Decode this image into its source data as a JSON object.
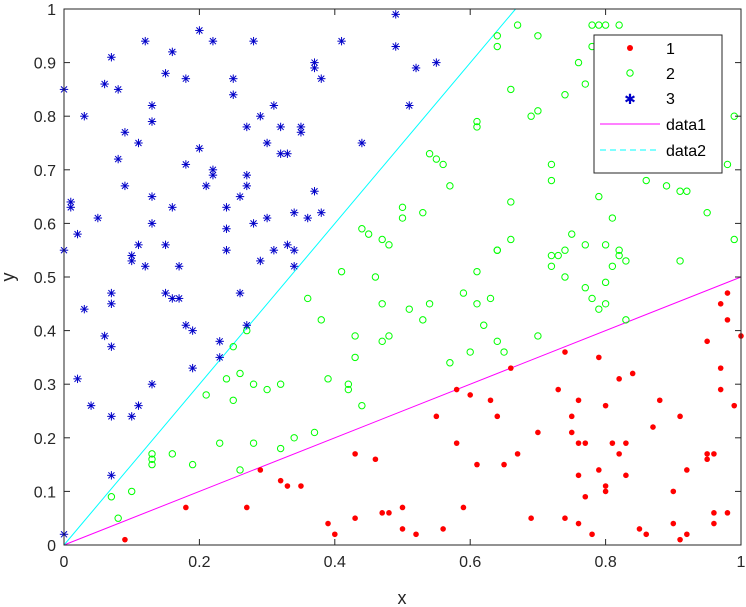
{
  "chart_data": {
    "type": "scatter",
    "xlabel": "x",
    "ylabel": "y",
    "xlim": [
      0,
      1
    ],
    "ylim": [
      0,
      1
    ],
    "xticks": [
      "0",
      "0.2",
      "0.4",
      "0.6",
      "0.8",
      "1"
    ],
    "yticks": [
      "0",
      "0.1",
      "0.2",
      "0.3",
      "0.4",
      "0.5",
      "0.6",
      "0.7",
      "0.8",
      "0.9",
      "1"
    ],
    "grid": false,
    "legend_position": "top-right",
    "series": [
      {
        "name": "1",
        "marker": "filled-circle",
        "color": "#ff0000",
        "points": [
          [
            0.09,
            0.01
          ],
          [
            0.18,
            0.07
          ],
          [
            0.27,
            0.07
          ],
          [
            0.29,
            0.14
          ],
          [
            0.32,
            0.12
          ],
          [
            0.33,
            0.11
          ],
          [
            0.35,
            0.11
          ],
          [
            0.39,
            0.04
          ],
          [
            0.4,
            0.02
          ],
          [
            0.43,
            0.17
          ],
          [
            0.43,
            0.05
          ],
          [
            0.46,
            0.16
          ],
          [
            0.47,
            0.06
          ],
          [
            0.48,
            0.06
          ],
          [
            0.5,
            0.07
          ],
          [
            0.5,
            0.03
          ],
          [
            0.52,
            0.02
          ],
          [
            0.55,
            0.24
          ],
          [
            0.56,
            0.03
          ],
          [
            0.58,
            0.29
          ],
          [
            0.58,
            0.19
          ],
          [
            0.59,
            0.07
          ],
          [
            0.6,
            0.28
          ],
          [
            0.61,
            0.15
          ],
          [
            0.63,
            0.27
          ],
          [
            0.64,
            0.24
          ],
          [
            0.65,
            0.15
          ],
          [
            0.66,
            0.33
          ],
          [
            0.67,
            0.17
          ],
          [
            0.69,
            0.05
          ],
          [
            0.7,
            0.21
          ],
          [
            0.73,
            0.29
          ],
          [
            0.74,
            0.36
          ],
          [
            0.74,
            0.05
          ],
          [
            0.75,
            0.24
          ],
          [
            0.75,
            0.21
          ],
          [
            0.76,
            0.27
          ],
          [
            0.76,
            0.19
          ],
          [
            0.76,
            0.13
          ],
          [
            0.76,
            0.04
          ],
          [
            0.77,
            0.19
          ],
          [
            0.77,
            0.09
          ],
          [
            0.78,
            0.02
          ],
          [
            0.79,
            0.35
          ],
          [
            0.79,
            0.14
          ],
          [
            0.8,
            0.26
          ],
          [
            0.8,
            0.11
          ],
          [
            0.8,
            0.1
          ],
          [
            0.81,
            0.19
          ],
          [
            0.82,
            0.31
          ],
          [
            0.82,
            0.17
          ],
          [
            0.83,
            0.19
          ],
          [
            0.83,
            0.13
          ],
          [
            0.84,
            0.32
          ],
          [
            0.85,
            0.03
          ],
          [
            0.86,
            0.02
          ],
          [
            0.87,
            0.22
          ],
          [
            0.88,
            0.27
          ],
          [
            0.9,
            0.1
          ],
          [
            0.9,
            0.04
          ],
          [
            0.91,
            0.24
          ],
          [
            0.91,
            0.01
          ],
          [
            0.92,
            0.02
          ],
          [
            0.92,
            0.14
          ],
          [
            0.95,
            0.38
          ],
          [
            0.95,
            0.17
          ],
          [
            0.96,
            0.06
          ],
          [
            0.96,
            0.17
          ],
          [
            0.96,
            0.04
          ],
          [
            0.97,
            0.33
          ],
          [
            0.97,
            0.29
          ],
          [
            0.97,
            0.45
          ],
          [
            0.98,
            0.42
          ],
          [
            0.98,
            0.06
          ],
          [
            0.98,
            0.47
          ],
          [
            0.99,
            0.26
          ],
          [
            1.0,
            0.39
          ],
          [
            0.95,
            0.16
          ]
        ]
      },
      {
        "name": "2",
        "marker": "open-circle",
        "color": "#00ff00",
        "points": [
          [
            0.07,
            0.09
          ],
          [
            0.08,
            0.05
          ],
          [
            0.1,
            0.1
          ],
          [
            0.13,
            0.16
          ],
          [
            0.13,
            0.15
          ],
          [
            0.13,
            0.17
          ],
          [
            0.16,
            0.17
          ],
          [
            0.19,
            0.15
          ],
          [
            0.21,
            0.28
          ],
          [
            0.23,
            0.19
          ],
          [
            0.24,
            0.31
          ],
          [
            0.25,
            0.37
          ],
          [
            0.25,
            0.27
          ],
          [
            0.26,
            0.32
          ],
          [
            0.26,
            0.14
          ],
          [
            0.27,
            0.4
          ],
          [
            0.28,
            0.19
          ],
          [
            0.28,
            0.3
          ],
          [
            0.3,
            0.29
          ],
          [
            0.32,
            0.3
          ],
          [
            0.32,
            0.18
          ],
          [
            0.34,
            0.2
          ],
          [
            0.36,
            0.46
          ],
          [
            0.37,
            0.21
          ],
          [
            0.38,
            0.42
          ],
          [
            0.39,
            0.31
          ],
          [
            0.41,
            0.51
          ],
          [
            0.42,
            0.3
          ],
          [
            0.42,
            0.29
          ],
          [
            0.43,
            0.39
          ],
          [
            0.43,
            0.35
          ],
          [
            0.44,
            0.26
          ],
          [
            0.44,
            0.59
          ],
          [
            0.45,
            0.58
          ],
          [
            0.46,
            0.5
          ],
          [
            0.47,
            0.38
          ],
          [
            0.47,
            0.45
          ],
          [
            0.47,
            0.57
          ],
          [
            0.48,
            0.56
          ],
          [
            0.48,
            0.39
          ],
          [
            0.5,
            0.63
          ],
          [
            0.5,
            0.61
          ],
          [
            0.51,
            0.44
          ],
          [
            0.53,
            0.62
          ],
          [
            0.53,
            0.42
          ],
          [
            0.54,
            0.45
          ],
          [
            0.54,
            0.73
          ],
          [
            0.55,
            0.72
          ],
          [
            0.56,
            0.71
          ],
          [
            0.57,
            0.34
          ],
          [
            0.57,
            0.67
          ],
          [
            0.59,
            0.47
          ],
          [
            0.6,
            0.36
          ],
          [
            0.61,
            0.51
          ],
          [
            0.61,
            0.45
          ],
          [
            0.61,
            0.79
          ],
          [
            0.61,
            0.78
          ],
          [
            0.62,
            0.41
          ],
          [
            0.63,
            0.46
          ],
          [
            0.64,
            0.38
          ],
          [
            0.64,
            0.55
          ],
          [
            0.65,
            0.36
          ],
          [
            0.64,
            0.93
          ],
          [
            0.64,
            0.95
          ],
          [
            0.64,
            0.55
          ],
          [
            0.66,
            0.64
          ],
          [
            0.66,
            0.57
          ],
          [
            0.66,
            0.85
          ],
          [
            0.67,
            0.97
          ],
          [
            0.69,
            0.8
          ],
          [
            0.7,
            0.95
          ],
          [
            0.7,
            0.81
          ],
          [
            0.7,
            0.39
          ],
          [
            0.72,
            0.68
          ],
          [
            0.72,
            0.71
          ],
          [
            0.72,
            0.54
          ],
          [
            0.72,
            0.52
          ],
          [
            0.73,
            0.54
          ],
          [
            0.74,
            0.55
          ],
          [
            0.74,
            0.84
          ],
          [
            0.74,
            0.5
          ],
          [
            0.75,
            0.58
          ],
          [
            0.76,
            0.9
          ],
          [
            0.77,
            0.48
          ],
          [
            0.77,
            0.56
          ],
          [
            0.78,
            0.97
          ],
          [
            0.78,
            0.46
          ],
          [
            0.79,
            0.44
          ],
          [
            0.79,
            0.97
          ],
          [
            0.79,
            0.65
          ],
          [
            0.8,
            0.97
          ],
          [
            0.8,
            0.49
          ],
          [
            0.8,
            0.45
          ],
          [
            0.8,
            0.56
          ],
          [
            0.81,
            0.61
          ],
          [
            0.81,
            0.52
          ],
          [
            0.82,
            0.97
          ],
          [
            0.82,
            0.54
          ],
          [
            0.82,
            0.55
          ],
          [
            0.83,
            0.42
          ],
          [
            0.83,
            0.53
          ],
          [
            0.84,
            0.91
          ],
          [
            0.86,
            0.68
          ],
          [
            0.89,
            0.67
          ],
          [
            0.91,
            0.66
          ],
          [
            0.91,
            0.53
          ],
          [
            0.92,
            0.66
          ],
          [
            0.95,
            0.62
          ],
          [
            0.98,
            0.71
          ],
          [
            0.99,
            0.8
          ],
          [
            0.99,
            0.57
          ],
          [
            0.77,
            0.86
          ],
          [
            0.78,
            0.93
          ],
          [
            0.83,
            0.93
          ]
        ]
      },
      {
        "name": "3",
        "marker": "asterisk",
        "color": "#0000c8",
        "points": [
          [
            0.0,
            0.85
          ],
          [
            0.0,
            0.55
          ],
          [
            0.0,
            0.02
          ],
          [
            0.01,
            0.63
          ],
          [
            0.01,
            0.64
          ],
          [
            0.02,
            0.58
          ],
          [
            0.02,
            0.31
          ],
          [
            0.03,
            0.8
          ],
          [
            0.03,
            0.44
          ],
          [
            0.04,
            0.26
          ],
          [
            0.05,
            0.61
          ],
          [
            0.06,
            0.86
          ],
          [
            0.06,
            0.39
          ],
          [
            0.07,
            0.91
          ],
          [
            0.07,
            0.47
          ],
          [
            0.07,
            0.45
          ],
          [
            0.07,
            0.37
          ],
          [
            0.07,
            0.24
          ],
          [
            0.07,
            0.13
          ],
          [
            0.08,
            0.85
          ],
          [
            0.08,
            0.72
          ],
          [
            0.09,
            0.67
          ],
          [
            0.09,
            0.77
          ],
          [
            0.1,
            0.54
          ],
          [
            0.1,
            0.24
          ],
          [
            0.1,
            0.53
          ],
          [
            0.11,
            0.26
          ],
          [
            0.11,
            0.56
          ],
          [
            0.11,
            0.75
          ],
          [
            0.12,
            0.52
          ],
          [
            0.12,
            0.94
          ],
          [
            0.13,
            0.3
          ],
          [
            0.13,
            0.6
          ],
          [
            0.13,
            0.82
          ],
          [
            0.13,
            0.79
          ],
          [
            0.13,
            0.65
          ],
          [
            0.15,
            0.47
          ],
          [
            0.15,
            0.88
          ],
          [
            0.15,
            0.56
          ],
          [
            0.16,
            0.63
          ],
          [
            0.16,
            0.46
          ],
          [
            0.16,
            0.92
          ],
          [
            0.17,
            0.46
          ],
          [
            0.17,
            0.52
          ],
          [
            0.18,
            0.71
          ],
          [
            0.18,
            0.41
          ],
          [
            0.18,
            0.87
          ],
          [
            0.19,
            0.4
          ],
          [
            0.19,
            0.33
          ],
          [
            0.2,
            0.74
          ],
          [
            0.2,
            0.96
          ],
          [
            0.21,
            0.67
          ],
          [
            0.22,
            0.69
          ],
          [
            0.22,
            0.7
          ],
          [
            0.22,
            0.94
          ],
          [
            0.23,
            0.35
          ],
          [
            0.23,
            0.38
          ],
          [
            0.24,
            0.63
          ],
          [
            0.24,
            0.59
          ],
          [
            0.24,
            0.55
          ],
          [
            0.25,
            0.87
          ],
          [
            0.25,
            0.84
          ],
          [
            0.26,
            0.65
          ],
          [
            0.26,
            0.47
          ],
          [
            0.27,
            0.41
          ],
          [
            0.27,
            0.67
          ],
          [
            0.27,
            0.69
          ],
          [
            0.27,
            0.78
          ],
          [
            0.28,
            0.6
          ],
          [
            0.28,
            0.94
          ],
          [
            0.29,
            0.53
          ],
          [
            0.29,
            0.8
          ],
          [
            0.3,
            0.61
          ],
          [
            0.3,
            0.75
          ],
          [
            0.31,
            0.55
          ],
          [
            0.31,
            0.82
          ],
          [
            0.32,
            0.73
          ],
          [
            0.32,
            0.78
          ],
          [
            0.33,
            0.73
          ],
          [
            0.33,
            0.56
          ],
          [
            0.34,
            0.62
          ],
          [
            0.34,
            0.55
          ],
          [
            0.34,
            0.52
          ],
          [
            0.35,
            0.77
          ],
          [
            0.35,
            0.78
          ],
          [
            0.36,
            0.61
          ],
          [
            0.37,
            0.89
          ],
          [
            0.37,
            0.9
          ],
          [
            0.37,
            0.66
          ],
          [
            0.38,
            0.87
          ],
          [
            0.38,
            0.62
          ],
          [
            0.41,
            0.94
          ],
          [
            0.44,
            0.75
          ],
          [
            0.49,
            0.93
          ],
          [
            0.49,
            0.99
          ],
          [
            0.51,
            0.82
          ],
          [
            0.52,
            0.89
          ],
          [
            0.55,
            0.9
          ]
        ]
      }
    ],
    "lines": [
      {
        "name": "data1",
        "style": "solid",
        "color": "#ff00ff",
        "x": [
          0,
          1
        ],
        "y": [
          0,
          0.5
        ]
      },
      {
        "name": "data2",
        "style": "dashed",
        "color": "#00ffff",
        "x": [
          0,
          0.667
        ],
        "y": [
          0,
          1
        ]
      }
    ]
  }
}
